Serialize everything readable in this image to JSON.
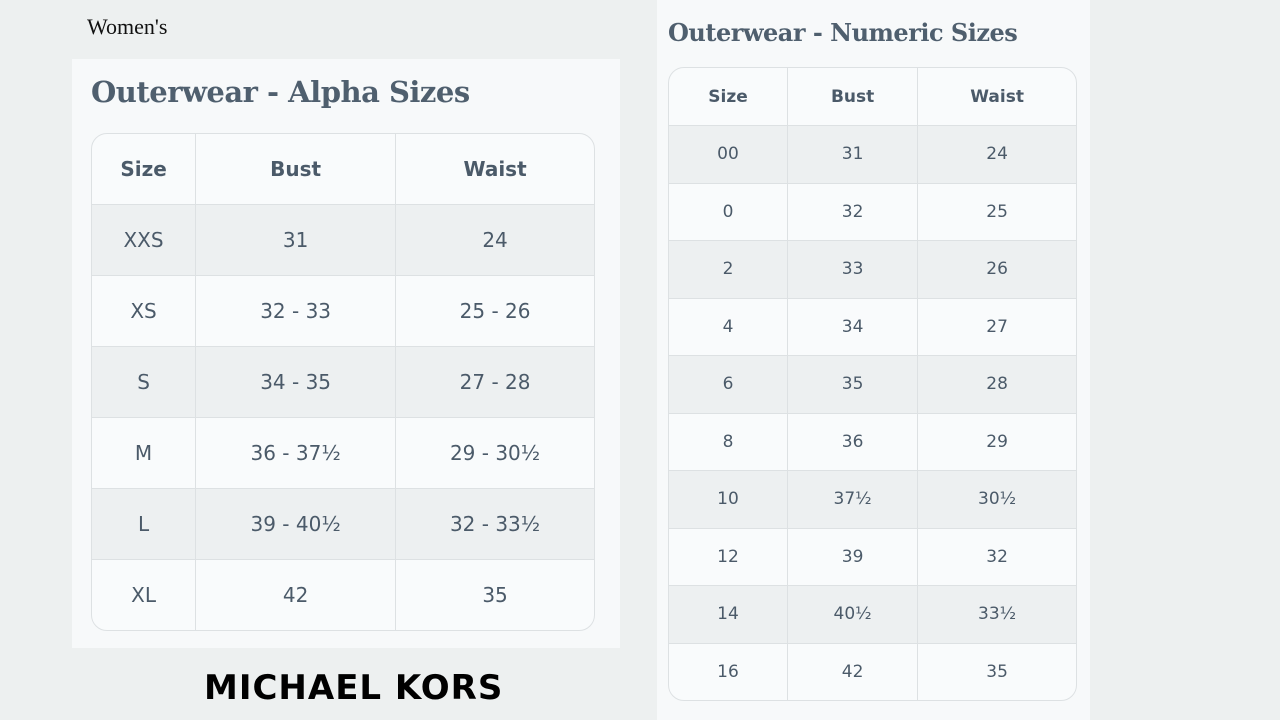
{
  "label": "Women's",
  "brand": "MICHAEL KORS",
  "alpha": {
    "title": "Outerwear - Alpha Sizes",
    "headers": [
      "Size",
      "Bust",
      "Waist"
    ],
    "rows": [
      [
        "XXS",
        "31",
        "24"
      ],
      [
        "XS",
        "32 - 33",
        "25 - 26"
      ],
      [
        "S",
        "34 - 35",
        "27 - 28"
      ],
      [
        "M",
        "36 - 37½",
        "29 - 30½"
      ],
      [
        "L",
        "39 - 40½",
        "32 - 33½"
      ],
      [
        "XL",
        "42",
        "35"
      ]
    ]
  },
  "numeric": {
    "title": "Outerwear - Numeric Sizes",
    "headers": [
      "Size",
      "Bust",
      "Waist"
    ],
    "rows": [
      [
        "00",
        "31",
        "24"
      ],
      [
        "0",
        "32",
        "25"
      ],
      [
        "2",
        "33",
        "26"
      ],
      [
        "4",
        "34",
        "27"
      ],
      [
        "6",
        "35",
        "28"
      ],
      [
        "8",
        "36",
        "29"
      ],
      [
        "10",
        "37½",
        "30½"
      ],
      [
        "12",
        "39",
        "32"
      ],
      [
        "14",
        "40½",
        "33½"
      ],
      [
        "16",
        "42",
        "35"
      ]
    ]
  }
}
